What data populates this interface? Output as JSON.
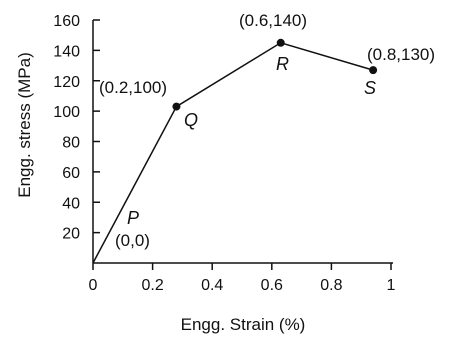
{
  "chart_data": {
    "type": "line",
    "xlabel": "Engg. Strain (%)",
    "ylabel": "Engg. stress (MPa)",
    "xlim": [
      0,
      1
    ],
    "ylim": [
      0,
      160
    ],
    "x_ticks": [
      "0",
      "0.2",
      "0.4",
      "0.6",
      "0.8",
      "1"
    ],
    "y_ticks": [
      "20",
      "40",
      "60",
      "80",
      "100",
      "120",
      "140",
      "160"
    ],
    "grid": false,
    "series": [
      {
        "points": [
          {
            "x": 0,
            "y": 0
          },
          {
            "x": 0.28,
            "y": 103
          },
          {
            "x": 0.63,
            "y": 145
          },
          {
            "x": 0.94,
            "y": 127
          }
        ]
      }
    ],
    "annotations": [
      {
        "letter": "P",
        "coords": "(0,0)"
      },
      {
        "letter": "Q",
        "coords": "(0.2,100)"
      },
      {
        "letter": "R",
        "coords": "(0.6,140)"
      },
      {
        "letter": "S",
        "coords": "(0.8,130)"
      }
    ]
  }
}
